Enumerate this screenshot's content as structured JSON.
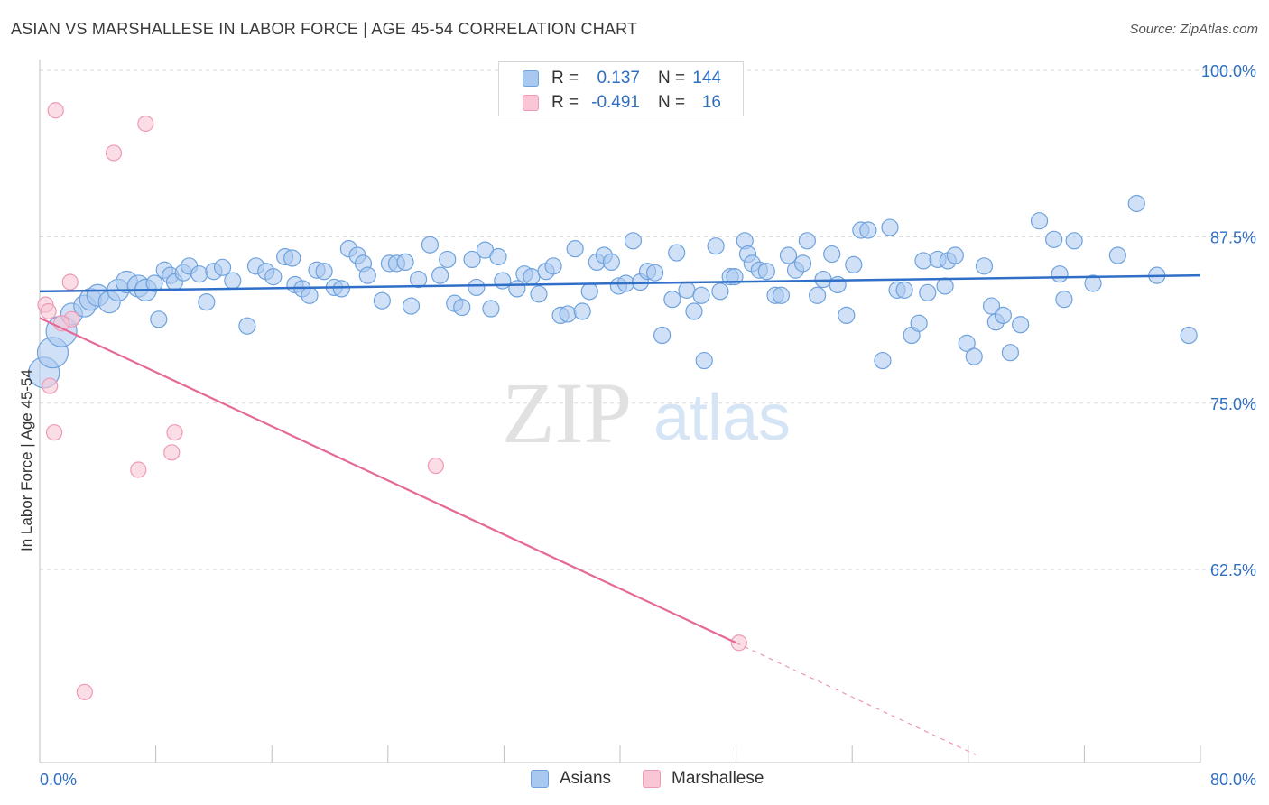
{
  "title": "ASIAN VS MARSHALLESE IN LABOR FORCE | AGE 45-54 CORRELATION CHART",
  "source": "Source: ZipAtlas.com",
  "watermark": {
    "zip": "ZIP",
    "atlas": "atlas"
  },
  "legend": {
    "rows": [
      {
        "swatch_color": "#a9c8f0",
        "r_label": "R =",
        "r_value": "0.137",
        "n_label": "N =",
        "n_value": "144"
      },
      {
        "swatch_color": "#f7b7c9",
        "r_label": "R =",
        "r_value": "-0.491",
        "n_label": "N =",
        "n_value": "16"
      }
    ]
  },
  "bottom_legend": [
    {
      "label": "Asians",
      "color": "#a9c8f0"
    },
    {
      "label": "Marshallese",
      "color": "#f7b7c9"
    }
  ],
  "colors": {
    "asian_fill": "#a9c8f0",
    "asian_stroke": "#6fa2dd",
    "asian_line": "#2f6fc8",
    "marsh_fill": "#f9c6d5",
    "marsh_stroke": "#ee9ab5",
    "marsh_line": "#e56a97",
    "tick_label": "#2f6fc0",
    "grid": "#d9d9d9"
  },
  "chart_data": {
    "type": "scatter",
    "title": "ASIAN VS MARSHALLESE IN LABOR FORCE | AGE 45-54 CORRELATION CHART",
    "xlabel": "",
    "ylabel": "In Labor Force | Age 45-54",
    "xlim": [
      0,
      80
    ],
    "ylim": [
      48,
      100
    ],
    "x_tick_labels": [
      "0.0%",
      "80.0%"
    ],
    "y_ticks": [
      {
        "value": 100,
        "label": "100.0%"
      },
      {
        "value": 87.5,
        "label": "87.5%"
      },
      {
        "value": 75,
        "label": "75.0%"
      },
      {
        "value": 62.5,
        "label": "62.5%"
      }
    ],
    "grid": "horizontal dashed",
    "legend_position": "top-center",
    "series": [
      {
        "name": "Asians",
        "r": 0.137,
        "n": 144,
        "trend": {
          "x": [
            0,
            80
          ],
          "y": [
            83.4,
            84.6
          ],
          "dashed_from": null
        },
        "points": [
          {
            "x": 0.3,
            "y": 77.3,
            "s": 3
          },
          {
            "x": 0.9,
            "y": 78.8,
            "s": 3
          },
          {
            "x": 1.5,
            "y": 80.4,
            "s": 3
          },
          {
            "x": 2.2,
            "y": 81.7,
            "s": 2
          },
          {
            "x": 3.1,
            "y": 82.3,
            "s": 2
          },
          {
            "x": 3.5,
            "y": 82.8,
            "s": 2
          },
          {
            "x": 4.0,
            "y": 83.1,
            "s": 2
          },
          {
            "x": 4.8,
            "y": 82.6,
            "s": 2
          },
          {
            "x": 5.4,
            "y": 83.5,
            "s": 2
          },
          {
            "x": 6.0,
            "y": 84.1,
            "s": 2
          },
          {
            "x": 6.8,
            "y": 83.8,
            "s": 2
          },
          {
            "x": 7.3,
            "y": 83.5,
            "s": 2
          },
          {
            "x": 7.9,
            "y": 84.0,
            "s": 1
          },
          {
            "x": 8.2,
            "y": 81.3,
            "s": 1
          },
          {
            "x": 8.6,
            "y": 85.0,
            "s": 1
          },
          {
            "x": 9.0,
            "y": 84.6,
            "s": 1
          },
          {
            "x": 9.3,
            "y": 84.1,
            "s": 1
          },
          {
            "x": 9.9,
            "y": 84.8,
            "s": 1
          },
          {
            "x": 10.3,
            "y": 85.3,
            "s": 1
          },
          {
            "x": 11.0,
            "y": 84.7,
            "s": 1
          },
          {
            "x": 11.5,
            "y": 82.6,
            "s": 1
          },
          {
            "x": 12.0,
            "y": 84.9,
            "s": 1
          },
          {
            "x": 12.6,
            "y": 85.2,
            "s": 1
          },
          {
            "x": 13.3,
            "y": 84.2,
            "s": 1
          },
          {
            "x": 14.3,
            "y": 80.8,
            "s": 1
          },
          {
            "x": 14.9,
            "y": 85.3,
            "s": 1
          },
          {
            "x": 15.6,
            "y": 84.9,
            "s": 1
          },
          {
            "x": 16.1,
            "y": 84.5,
            "s": 1
          },
          {
            "x": 16.9,
            "y": 86.0,
            "s": 1
          },
          {
            "x": 17.4,
            "y": 85.9,
            "s": 1
          },
          {
            "x": 17.6,
            "y": 83.9,
            "s": 1
          },
          {
            "x": 18.1,
            "y": 83.6,
            "s": 1
          },
          {
            "x": 18.6,
            "y": 83.1,
            "s": 1
          },
          {
            "x": 19.1,
            "y": 85.0,
            "s": 1
          },
          {
            "x": 19.6,
            "y": 84.9,
            "s": 1
          },
          {
            "x": 20.3,
            "y": 83.7,
            "s": 1
          },
          {
            "x": 20.8,
            "y": 83.6,
            "s": 1
          },
          {
            "x": 21.3,
            "y": 86.6,
            "s": 1
          },
          {
            "x": 21.9,
            "y": 86.1,
            "s": 1
          },
          {
            "x": 22.3,
            "y": 85.5,
            "s": 1
          },
          {
            "x": 22.6,
            "y": 84.6,
            "s": 1
          },
          {
            "x": 23.6,
            "y": 82.7,
            "s": 1
          },
          {
            "x": 24.1,
            "y": 85.5,
            "s": 1
          },
          {
            "x": 24.6,
            "y": 85.5,
            "s": 1
          },
          {
            "x": 25.2,
            "y": 85.6,
            "s": 1
          },
          {
            "x": 25.6,
            "y": 82.3,
            "s": 1
          },
          {
            "x": 26.1,
            "y": 84.3,
            "s": 1
          },
          {
            "x": 26.9,
            "y": 86.9,
            "s": 1
          },
          {
            "x": 27.6,
            "y": 84.6,
            "s": 1
          },
          {
            "x": 28.1,
            "y": 85.8,
            "s": 1
          },
          {
            "x": 28.6,
            "y": 82.5,
            "s": 1
          },
          {
            "x": 29.1,
            "y": 82.2,
            "s": 1
          },
          {
            "x": 29.8,
            "y": 85.8,
            "s": 1
          },
          {
            "x": 30.1,
            "y": 83.7,
            "s": 1
          },
          {
            "x": 30.7,
            "y": 86.5,
            "s": 1
          },
          {
            "x": 31.1,
            "y": 82.1,
            "s": 1
          },
          {
            "x": 31.6,
            "y": 86.0,
            "s": 1
          },
          {
            "x": 31.9,
            "y": 84.2,
            "s": 1
          },
          {
            "x": 32.9,
            "y": 83.6,
            "s": 1
          },
          {
            "x": 33.4,
            "y": 84.7,
            "s": 1
          },
          {
            "x": 33.9,
            "y": 84.5,
            "s": 1
          },
          {
            "x": 34.4,
            "y": 83.2,
            "s": 1
          },
          {
            "x": 34.9,
            "y": 84.9,
            "s": 1
          },
          {
            "x": 35.4,
            "y": 85.3,
            "s": 1
          },
          {
            "x": 35.9,
            "y": 81.6,
            "s": 1
          },
          {
            "x": 36.4,
            "y": 81.7,
            "s": 1
          },
          {
            "x": 36.9,
            "y": 86.6,
            "s": 1
          },
          {
            "x": 37.4,
            "y": 81.9,
            "s": 1
          },
          {
            "x": 37.9,
            "y": 83.4,
            "s": 1
          },
          {
            "x": 38.4,
            "y": 85.6,
            "s": 1
          },
          {
            "x": 38.9,
            "y": 86.1,
            "s": 1
          },
          {
            "x": 39.4,
            "y": 85.6,
            "s": 1
          },
          {
            "x": 39.9,
            "y": 83.8,
            "s": 1
          },
          {
            "x": 40.4,
            "y": 84.0,
            "s": 1
          },
          {
            "x": 40.9,
            "y": 87.2,
            "s": 1
          },
          {
            "x": 41.4,
            "y": 84.1,
            "s": 1
          },
          {
            "x": 41.9,
            "y": 84.9,
            "s": 1
          },
          {
            "x": 42.4,
            "y": 84.8,
            "s": 1
          },
          {
            "x": 42.9,
            "y": 80.1,
            "s": 1
          },
          {
            "x": 43.6,
            "y": 82.8,
            "s": 1
          },
          {
            "x": 43.9,
            "y": 86.3,
            "s": 1
          },
          {
            "x": 44.6,
            "y": 83.5,
            "s": 1
          },
          {
            "x": 45.1,
            "y": 81.9,
            "s": 1
          },
          {
            "x": 45.6,
            "y": 83.1,
            "s": 1
          },
          {
            "x": 45.8,
            "y": 78.2,
            "s": 1
          },
          {
            "x": 46.6,
            "y": 86.8,
            "s": 1
          },
          {
            "x": 46.9,
            "y": 83.4,
            "s": 1
          },
          {
            "x": 47.6,
            "y": 84.5,
            "s": 1
          },
          {
            "x": 47.9,
            "y": 84.5,
            "s": 1
          },
          {
            "x": 48.6,
            "y": 87.2,
            "s": 1
          },
          {
            "x": 48.8,
            "y": 86.2,
            "s": 1
          },
          {
            "x": 49.1,
            "y": 85.5,
            "s": 1
          },
          {
            "x": 49.6,
            "y": 85.0,
            "s": 1
          },
          {
            "x": 50.1,
            "y": 84.9,
            "s": 1
          },
          {
            "x": 50.7,
            "y": 83.1,
            "s": 1
          },
          {
            "x": 51.1,
            "y": 83.1,
            "s": 1
          },
          {
            "x": 51.6,
            "y": 86.1,
            "s": 1
          },
          {
            "x": 52.1,
            "y": 85.0,
            "s": 1
          },
          {
            "x": 52.6,
            "y": 85.5,
            "s": 1
          },
          {
            "x": 52.9,
            "y": 87.2,
            "s": 1
          },
          {
            "x": 53.6,
            "y": 83.1,
            "s": 1
          },
          {
            "x": 54.0,
            "y": 84.3,
            "s": 1
          },
          {
            "x": 54.6,
            "y": 86.2,
            "s": 1
          },
          {
            "x": 55.0,
            "y": 83.9,
            "s": 1
          },
          {
            "x": 55.6,
            "y": 81.6,
            "s": 1
          },
          {
            "x": 56.1,
            "y": 85.4,
            "s": 1
          },
          {
            "x": 56.6,
            "y": 88.0,
            "s": 1
          },
          {
            "x": 57.1,
            "y": 88.0,
            "s": 1
          },
          {
            "x": 58.1,
            "y": 78.2,
            "s": 1
          },
          {
            "x": 58.6,
            "y": 88.2,
            "s": 1
          },
          {
            "x": 59.1,
            "y": 83.5,
            "s": 1
          },
          {
            "x": 59.6,
            "y": 83.5,
            "s": 1
          },
          {
            "x": 60.1,
            "y": 80.1,
            "s": 1
          },
          {
            "x": 60.6,
            "y": 81.0,
            "s": 1
          },
          {
            "x": 60.9,
            "y": 85.7,
            "s": 1
          },
          {
            "x": 61.2,
            "y": 83.3,
            "s": 1
          },
          {
            "x": 61.9,
            "y": 85.8,
            "s": 1
          },
          {
            "x": 62.4,
            "y": 83.8,
            "s": 1
          },
          {
            "x": 62.6,
            "y": 85.7,
            "s": 1
          },
          {
            "x": 63.1,
            "y": 86.1,
            "s": 1
          },
          {
            "x": 63.9,
            "y": 79.5,
            "s": 1
          },
          {
            "x": 64.4,
            "y": 78.5,
            "s": 1
          },
          {
            "x": 65.1,
            "y": 85.3,
            "s": 1
          },
          {
            "x": 65.6,
            "y": 82.3,
            "s": 1
          },
          {
            "x": 65.9,
            "y": 81.1,
            "s": 1
          },
          {
            "x": 66.4,
            "y": 81.6,
            "s": 1
          },
          {
            "x": 66.9,
            "y": 78.8,
            "s": 1
          },
          {
            "x": 67.6,
            "y": 80.9,
            "s": 1
          },
          {
            "x": 68.9,
            "y": 88.7,
            "s": 1
          },
          {
            "x": 69.9,
            "y": 87.3,
            "s": 1
          },
          {
            "x": 70.3,
            "y": 84.7,
            "s": 1
          },
          {
            "x": 70.6,
            "y": 82.8,
            "s": 1
          },
          {
            "x": 71.3,
            "y": 87.2,
            "s": 1
          },
          {
            "x": 72.6,
            "y": 84.0,
            "s": 1
          },
          {
            "x": 74.3,
            "y": 86.1,
            "s": 1
          },
          {
            "x": 75.6,
            "y": 90.0,
            "s": 1
          },
          {
            "x": 77.0,
            "y": 84.6,
            "s": 1
          },
          {
            "x": 79.2,
            "y": 80.1,
            "s": 1
          }
        ]
      },
      {
        "name": "Marshallese",
        "r": -0.491,
        "n": 16,
        "trend": {
          "x": [
            0,
            48
          ],
          "y": [
            81.4,
            57.0
          ],
          "dashed_to": [
            64.5,
            48.6
          ]
        },
        "points": [
          {
            "x": 0.4,
            "y": 82.4
          },
          {
            "x": 0.6,
            "y": 81.9
          },
          {
            "x": 0.7,
            "y": 76.3
          },
          {
            "x": 1.0,
            "y": 72.8
          },
          {
            "x": 1.1,
            "y": 97.0
          },
          {
            "x": 2.1,
            "y": 84.1
          },
          {
            "x": 2.2,
            "y": 81.3
          },
          {
            "x": 3.1,
            "y": 53.3
          },
          {
            "x": 5.1,
            "y": 93.8
          },
          {
            "x": 6.8,
            "y": 70.0
          },
          {
            "x": 7.3,
            "y": 96.0
          },
          {
            "x": 9.1,
            "y": 71.3
          },
          {
            "x": 9.3,
            "y": 72.8
          },
          {
            "x": 27.3,
            "y": 70.3
          },
          {
            "x": 48.2,
            "y": 57.0
          },
          {
            "x": 1.5,
            "y": 81.0
          }
        ]
      }
    ]
  }
}
